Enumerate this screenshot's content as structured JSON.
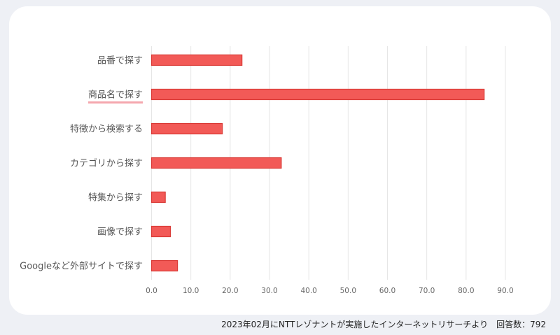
{
  "chart_data": {
    "type": "bar",
    "orientation": "horizontal",
    "categories": [
      "品番で探す",
      "商品名で探す",
      "特徴から検索する",
      "カテゴリから探す",
      "特集から探す",
      "画像で探す",
      "Googleなど外部サイトで探す"
    ],
    "values": [
      23.0,
      84.6,
      18.0,
      33.0,
      3.5,
      4.8,
      6.6
    ],
    "xlim": [
      0,
      90
    ],
    "xticks": [
      "0.0",
      "10.0",
      "20.0",
      "30.0",
      "40.0",
      "50.0",
      "60.0",
      "70.0",
      "80.0",
      "90.0"
    ],
    "grid": true,
    "highlighted_category": "商品名で探す",
    "colors": {
      "bar_fill": "#f25a57",
      "bar_stroke": "#d93a36",
      "highlight": "#f5a7ae",
      "grid": "#e6e6e6"
    }
  },
  "footnote": "2023年02月にNTTレゾナントが実施したインターネットリサーチより　回答数：792"
}
